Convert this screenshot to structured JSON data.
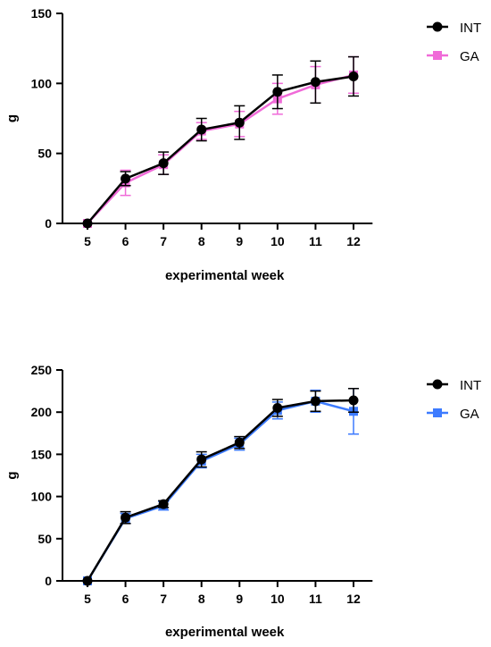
{
  "chart_data": [
    {
      "type": "line",
      "xlabel": "experimental week",
      "ylabel": "g",
      "x": [
        5,
        6,
        7,
        8,
        9,
        10,
        11,
        12
      ],
      "xlim": [
        4.5,
        12.5
      ],
      "ylim": [
        0,
        150
      ],
      "yticks": [
        0,
        50,
        100,
        150
      ],
      "grid": false,
      "legend_position": "top-right",
      "series": [
        {
          "name": "GA",
          "marker": "square",
          "color": "#f06ad8",
          "values": [
            0,
            29,
            42,
            66,
            71,
            89,
            99,
            106
          ],
          "errors": [
            0,
            9,
            7,
            6,
            9,
            11,
            13,
            13
          ]
        },
        {
          "name": "INT",
          "marker": "circle",
          "color": "#000000",
          "values": [
            0,
            32,
            43,
            67,
            72,
            94,
            101,
            105
          ],
          "errors": [
            0,
            5,
            8,
            8,
            12,
            12,
            15,
            14
          ]
        }
      ]
    },
    {
      "type": "line",
      "xlabel": "experimental week",
      "ylabel": "g",
      "x": [
        5,
        6,
        7,
        8,
        9,
        10,
        11,
        12
      ],
      "xlim": [
        4.5,
        12.5
      ],
      "ylim": [
        0,
        250
      ],
      "yticks": [
        0,
        50,
        100,
        150,
        200,
        250
      ],
      "grid": false,
      "legend_position": "top-right",
      "series": [
        {
          "name": "GA",
          "marker": "square",
          "color": "#3d7bff",
          "values": [
            0,
            74,
            89,
            142,
            162,
            202,
            213,
            201
          ],
          "errors": [
            0,
            6,
            5,
            8,
            7,
            10,
            13,
            27
          ]
        },
        {
          "name": "INT",
          "marker": "circle",
          "color": "#000000",
          "values": [
            0,
            75,
            91,
            144,
            164,
            205,
            213,
            214
          ],
          "errors": [
            0,
            7,
            4,
            9,
            7,
            10,
            12,
            14
          ]
        }
      ]
    }
  ]
}
